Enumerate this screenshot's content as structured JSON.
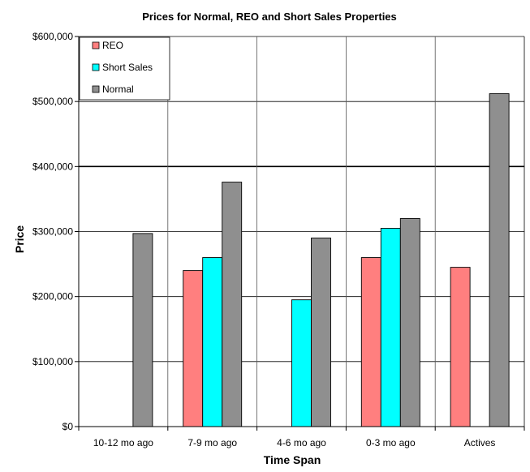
{
  "chart_data": {
    "type": "bar",
    "title": "Prices for Normal, REO and Short  Sales Properties",
    "xlabel": "Time Span",
    "ylabel": "Price",
    "categories": [
      "10-12 mo ago",
      "7-9 mo ago",
      "4-6 mo ago",
      "0-3 mo ago",
      "Actives"
    ],
    "ylim": [
      0,
      600000
    ],
    "y_ticks": [
      0,
      100000,
      200000,
      300000,
      400000,
      500000,
      600000
    ],
    "y_tick_labels": [
      "$0",
      "$100,000",
      "$200,000",
      "$300,000",
      "$400,000",
      "$500,000",
      "$600,000"
    ],
    "grid": true,
    "legend_position": "top-left",
    "series": [
      {
        "name": "REO",
        "color": "#ff7f7f",
        "values": [
          null,
          240000,
          null,
          260000,
          245000
        ]
      },
      {
        "name": "Short Sales",
        "color": "#00ffff",
        "values": [
          null,
          260000,
          195000,
          305000,
          null
        ]
      },
      {
        "name": "Normal",
        "color": "#8f8f8f",
        "values": [
          297000,
          376000,
          290000,
          320000,
          512000
        ]
      }
    ]
  }
}
